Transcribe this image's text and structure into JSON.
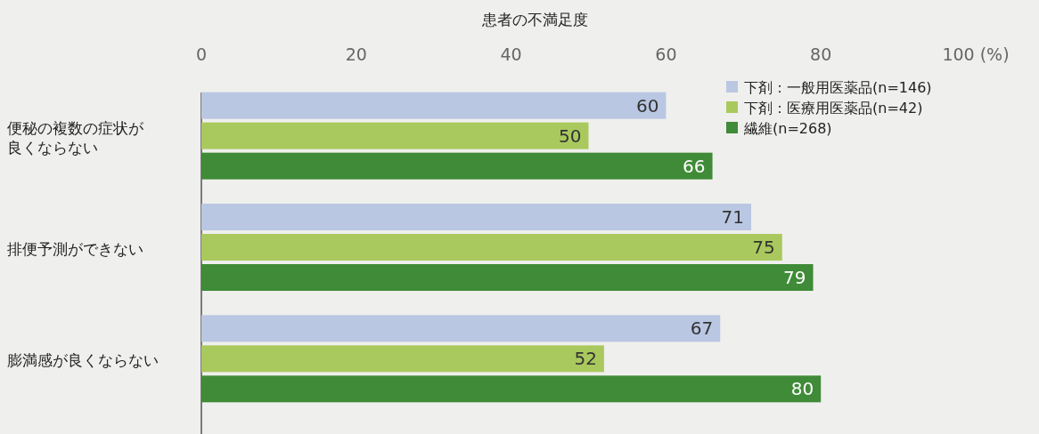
{
  "chart_data": {
    "type": "bar",
    "orientation": "horizontal",
    "xlabel": "患者の不満足度",
    "categories": [
      "便秘の複数の症状が良くならない",
      "排便予測ができない",
      "膨満感が良くならない"
    ],
    "series": [
      {
        "name": "下剤：一般用医薬品(n=146)",
        "color": "#b9c7e2",
        "values": [
          60,
          71,
          67
        ]
      },
      {
        "name": "下剤：医療用医薬品(n=42)",
        "color": "#a9c95e",
        "values": [
          50,
          75,
          52
        ]
      },
      {
        "name": "繊維(n=268)",
        "color": "#3f8b37",
        "values": [
          66,
          79,
          80
        ]
      }
    ],
    "xlim": [
      0,
      100
    ],
    "xticks": [
      0,
      20,
      40,
      60,
      80,
      {
        "value": 100,
        "label": "100 (%)"
      }
    ],
    "data_labels": true,
    "legend": "top right",
    "grid": false
  }
}
